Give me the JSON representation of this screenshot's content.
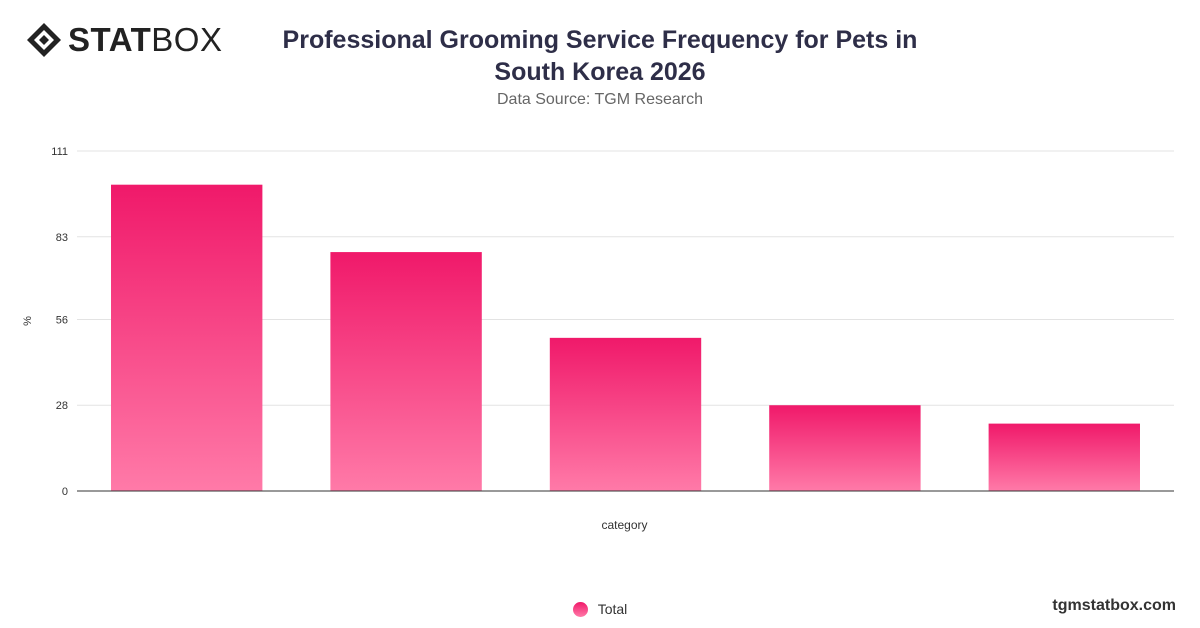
{
  "brand": {
    "name_bold": "STAT",
    "name_light": "BOX",
    "website": "tgmstatbox.com"
  },
  "chart_data": {
    "type": "bar",
    "title": "Professional Grooming Service Frequency for Pets in South Korea 2026",
    "subtitle": "Data Source: TGM Research",
    "xlabel": "category",
    "ylabel": "%",
    "ylim": [
      0,
      111
    ],
    "yticks": [
      0,
      28,
      56,
      83,
      111
    ],
    "categories": [
      "",
      "",
      "",
      "",
      ""
    ],
    "series": [
      {
        "name": "Total",
        "values": [
          100,
          78,
          50,
          28,
          22
        ],
        "color": "#f0196a"
      }
    ],
    "grid": true,
    "legend": "bottom-center"
  }
}
